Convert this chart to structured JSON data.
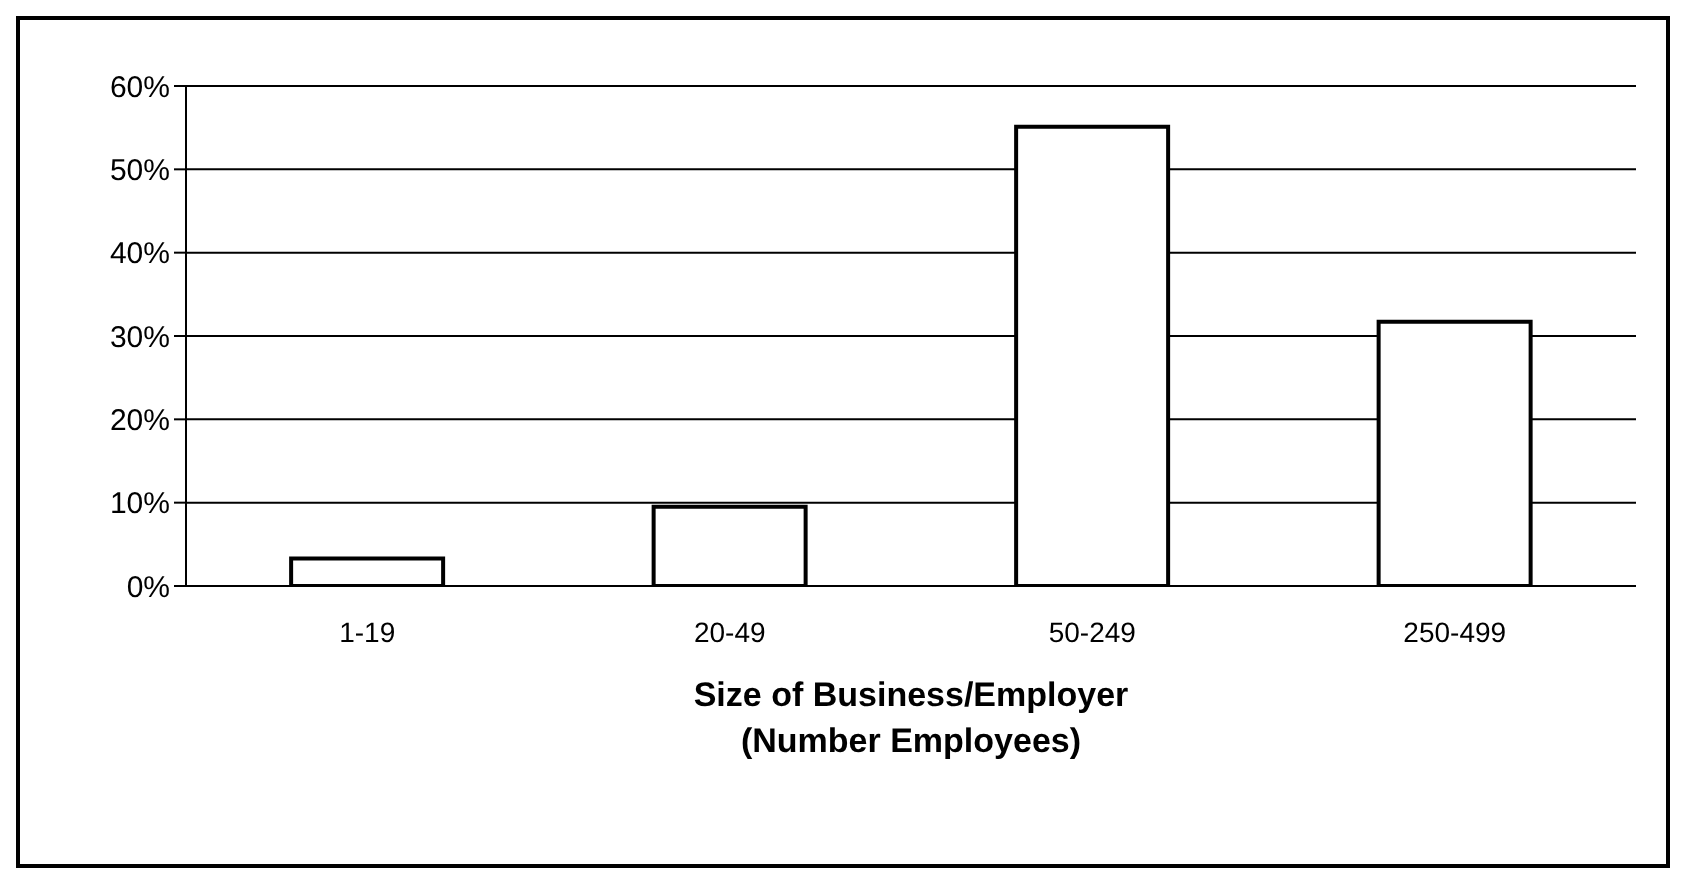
{
  "chart_data": {
    "type": "bar",
    "xlabel": "Size of Business/Employer\n(Number Employees)",
    "categories": [
      "1-19",
      "20-49",
      "50-249",
      "250-499"
    ],
    "values": [
      3.3,
      9.5,
      55.1,
      31.7
    ],
    "color": "#ffffff",
    "ylim": [
      0,
      60
    ],
    "yticks": [
      {
        "value": 0,
        "label": "0%"
      },
      {
        "value": 10,
        "label": "10%"
      },
      {
        "value": 20,
        "label": "20%"
      },
      {
        "value": 30,
        "label": "30%"
      },
      {
        "value": 40,
        "label": "40%"
      },
      {
        "value": 50,
        "label": "50%"
      },
      {
        "value": 60,
        "label": "60%"
      }
    ],
    "grid": "y"
  }
}
